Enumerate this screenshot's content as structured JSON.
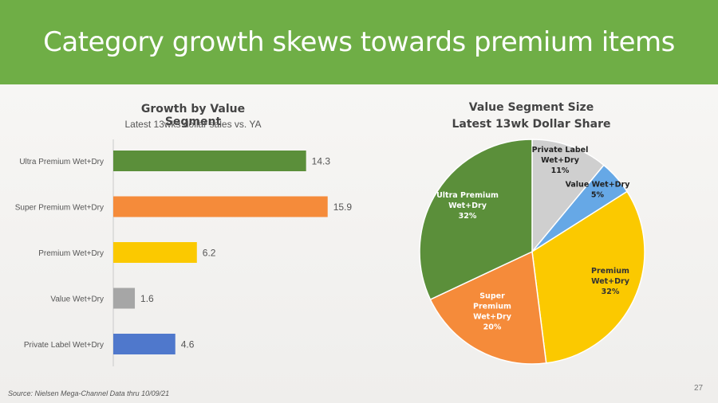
{
  "header": {
    "title": "Category growth skews towards premium items"
  },
  "footer": {
    "source": "Source:  Nielsen  Mega-Channel Data thru 10/09/21",
    "page_number": "27"
  },
  "colors": {
    "header_bg": "#6fae46",
    "ultra_premium": "#5b8f3a",
    "super_premium": "#f58b3a",
    "premium": "#fbc900",
    "value": "#a6a6a6",
    "private_label": "#4f78cc",
    "pie_value": "#66a8e6",
    "pie_private_label": "#cfcfcf"
  },
  "chart_data": [
    {
      "type": "bar",
      "orientation": "horizontal",
      "title": "Growth by Value Segment",
      "subtitle": "Latest 13wks dollar sales vs. YA",
      "categories": [
        "Ultra Premium Wet+Dry",
        "Super Premium Wet+Dry",
        "Premium Wet+Dry",
        "Value Wet+Dry",
        "Private Label Wet+Dry"
      ],
      "values": [
        14.3,
        15.9,
        6.2,
        1.6,
        4.6
      ],
      "data_labels": [
        "14.3",
        "15.9",
        "6.2",
        "1.6",
        "4.6"
      ],
      "xlim": [
        0,
        16
      ],
      "grid": false
    },
    {
      "type": "pie",
      "title": "Value Segment Size",
      "subtitle": "Latest 13wk Dollar Share",
      "slices": [
        {
          "label_lines": [
            "Private Label",
            "Wet+Dry",
            "11%"
          ],
          "value": 11
        },
        {
          "label_lines": [
            "Value Wet+Dry",
            "5%"
          ],
          "value": 5
        },
        {
          "label_lines": [
            "Premium",
            "Wet+Dry",
            "32%"
          ],
          "value": 32
        },
        {
          "label_lines": [
            "Super",
            "Premium",
            "Wet+Dry",
            "20%"
          ],
          "value": 20
        },
        {
          "label_lines": [
            "Ultra Premium",
            "Wet+Dry",
            "32%"
          ],
          "value": 32
        }
      ]
    }
  ]
}
